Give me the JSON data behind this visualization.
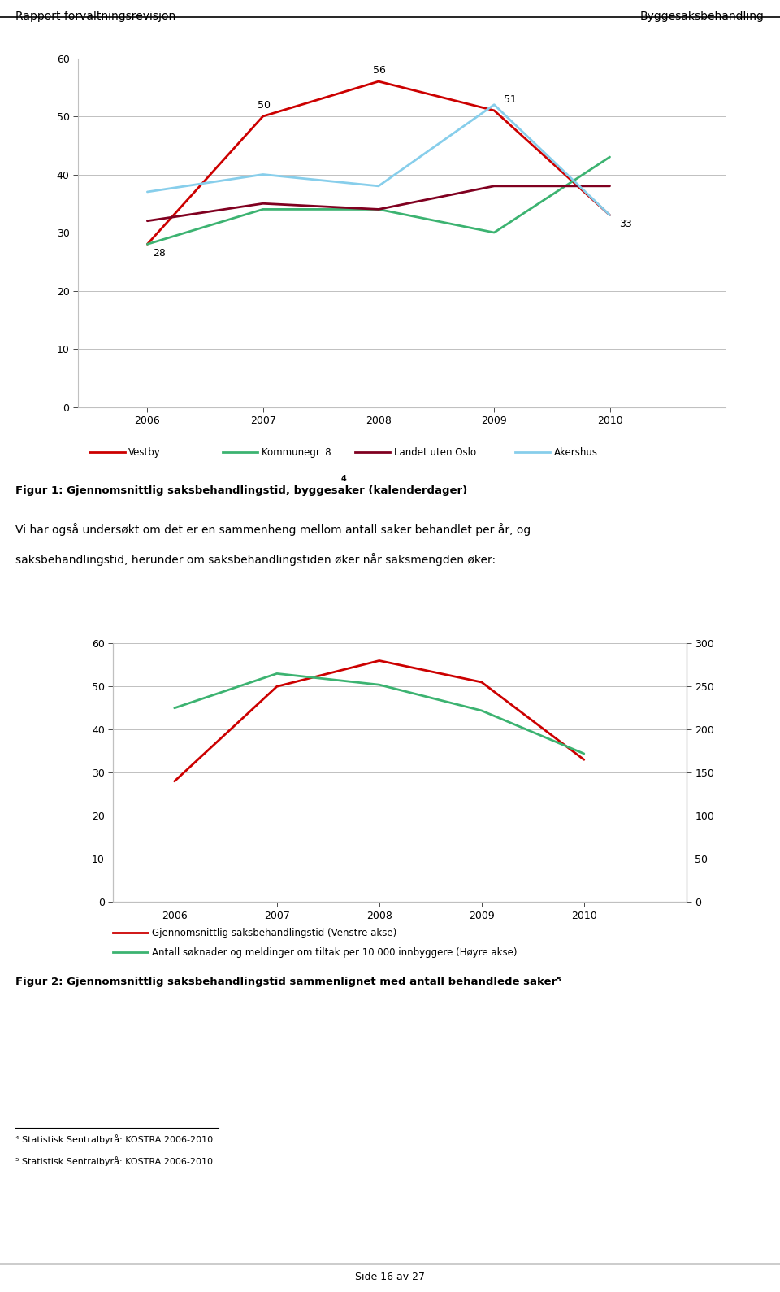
{
  "header_left": "Rapport forvaltningsrevisjon",
  "header_right": "Byggesaksbehandling",
  "page_footer": "Side 16 av 27",
  "chart1": {
    "years": [
      2006,
      2007,
      2008,
      2009,
      2010
    ],
    "vestby": [
      28,
      50,
      56,
      51,
      33
    ],
    "kommunegr8": [
      28,
      34,
      34,
      30,
      43
    ],
    "landet_uten_oslo": [
      32,
      35,
      34,
      38,
      38
    ],
    "akershus": [
      37,
      40,
      38,
      52,
      33
    ],
    "vestby_color": "#cc0000",
    "kommunegr8_color": "#3cb371",
    "landet_color": "#800020",
    "akershus_color": "#87ceeb",
    "ylim": [
      0,
      60
    ],
    "yticks": [
      0,
      10,
      20,
      30,
      40,
      50,
      60
    ],
    "annot_vestby": {
      "2006": 28,
      "2007": 50,
      "2008": 56,
      "2009": 51,
      "2010": 33
    },
    "legend_labels": [
      "Vestby",
      "Kommunegr. 8",
      "Landet uten Oslo",
      "Akershus"
    ],
    "figcaption": "Figur 1: Gjennomsnittlig saksbehandlingstid, byggesaker (kalenderdager) 4"
  },
  "text_body_line1": "Vi har også undersøkt om det er en sammenheng mellom antall saker behandlet per år, og",
  "text_body_line2": "saksbehandlingstid, herunder om saksbehandlingstiden øker når saksmengden øker:",
  "chart2": {
    "years": [
      2006,
      2007,
      2008,
      2009,
      2010
    ],
    "saksbehandlingstid": [
      28,
      50,
      56,
      51,
      33
    ],
    "antall_soknader": [
      225,
      265,
      252,
      222,
      172
    ],
    "saks_color": "#cc0000",
    "antall_color": "#3cb371",
    "ylim_left": [
      0,
      60
    ],
    "ylim_right": [
      0,
      300
    ],
    "yticks_left": [
      0,
      10,
      20,
      30,
      40,
      50,
      60
    ],
    "yticks_right": [
      0,
      50,
      100,
      150,
      200,
      250,
      300
    ],
    "legend1": "Gjennomsnittlig saksbehandlingstid (Venstre akse)",
    "legend2": "Antall søknader og meldinger om tiltak per 10 000 innbyggere (Høyre akse)",
    "figcaption": "Figur 2: Gjennomsnittlig saksbehandlingstid sammenlignet med antall behandlede saker⁵"
  },
  "footnote4": "⁴ Statistisk Sentralbyrå: KOSTRA 2006-2010",
  "footnote5": "⁵ Statistisk Sentralbyrå: KOSTRA 2006-2010",
  "bg_color": "#ffffff",
  "grid_color": "#c0c0c0",
  "text_color": "#000000",
  "axis_font_size": 9,
  "legend_font_size": 8.5,
  "body_font_size": 10,
  "caption_font_size": 9.5,
  "header_font_size": 10
}
